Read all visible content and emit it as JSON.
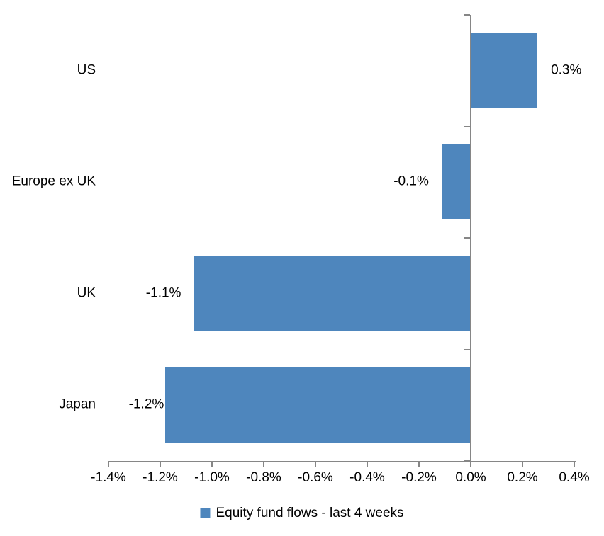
{
  "chart_data": {
    "type": "bar",
    "orientation": "horizontal",
    "title": "",
    "categories": [
      "US",
      "Europe ex UK",
      "UK",
      "Japan"
    ],
    "values": [
      0.3,
      -0.1,
      -1.1,
      -1.2
    ],
    "values_precise": [
      0.255,
      -0.11,
      -1.07,
      -1.18
    ],
    "value_labels": [
      "0.3%",
      "-0.1%",
      "-1.1%",
      "-1.2%"
    ],
    "series_name": "Equity fund flows - last 4 weeks",
    "xlim": [
      -1.4,
      0.4
    ],
    "x_tick_step": 0.2,
    "x_tick_labels": [
      "-1.4%",
      "-1.2%",
      "-1.0%",
      "-0.8%",
      "-0.6%",
      "-0.4%",
      "-0.2%",
      "0.0%",
      "0.2%",
      "0.4%"
    ],
    "legend_position": "bottom",
    "grid": false,
    "colors": {
      "bar": "#4E86BD",
      "axis": "#868686",
      "text": "#000000",
      "background": "#FFFFFF"
    }
  }
}
